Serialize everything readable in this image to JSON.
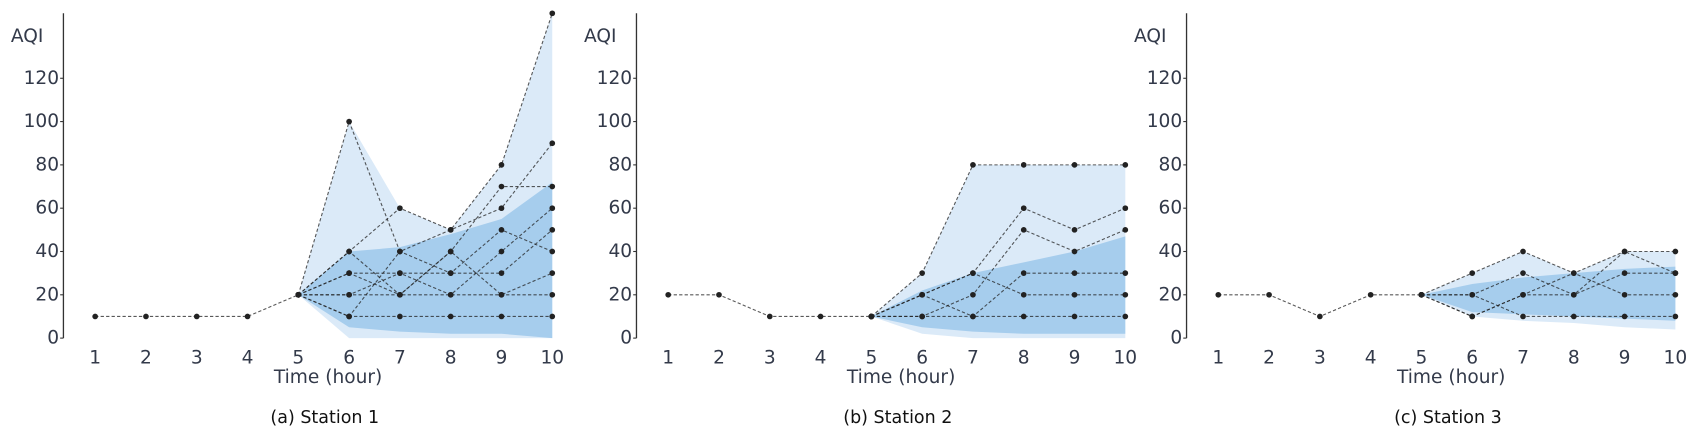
{
  "chart_data": [
    {
      "type": "line",
      "title": "(a) Station 1",
      "x_label": "Time (hour)",
      "y_label": "AQI",
      "x": [
        1,
        2,
        3,
        4,
        5,
        6,
        7,
        8,
        9,
        10
      ],
      "xlim": [
        0.375,
        10
      ],
      "xticks": [
        1,
        2,
        3,
        4,
        5,
        6,
        7,
        8,
        9,
        10
      ],
      "ylim": [
        0,
        150
      ],
      "yticks": [
        0,
        20,
        40,
        60,
        80,
        100,
        120
      ],
      "bands": [
        {
          "color": "#cfe3f6",
          "lower": [
            null,
            null,
            null,
            null,
            20,
            0,
            0,
            0,
            0,
            0
          ],
          "upper": [
            null,
            null,
            null,
            null,
            20,
            100,
            60,
            50,
            80,
            150
          ]
        },
        {
          "color": "#94c3ea",
          "lower": [
            null,
            null,
            null,
            null,
            20,
            5,
            3,
            2,
            2,
            0
          ],
          "upper": [
            null,
            null,
            null,
            null,
            20,
            40,
            42,
            48,
            55,
            72
          ]
        }
      ],
      "series": [
        {
          "color": "#222222",
          "values": [
            10,
            10,
            10,
            10,
            20,
            null,
            null,
            null,
            null,
            null
          ]
        },
        {
          "color": "#222222",
          "values": [
            null,
            null,
            null,
            null,
            20,
            100,
            40,
            50,
            80,
            150
          ]
        },
        {
          "color": "#222222",
          "values": [
            null,
            null,
            null,
            null,
            20,
            40,
            60,
            50,
            60,
            90
          ]
        },
        {
          "color": "#222222",
          "values": [
            null,
            null,
            null,
            null,
            20,
            30,
            20,
            40,
            70,
            70
          ]
        },
        {
          "color": "#222222",
          "values": [
            null,
            null,
            null,
            null,
            20,
            20,
            30,
            20,
            40,
            60
          ]
        },
        {
          "color": "#222222",
          "values": [
            null,
            null,
            null,
            null,
            20,
            10,
            10,
            10,
            10,
            10
          ]
        },
        {
          "color": "#222222",
          "values": [
            null,
            null,
            null,
            null,
            20,
            20,
            20,
            20,
            20,
            20
          ]
        },
        {
          "color": "#222222",
          "values": [
            null,
            null,
            null,
            null,
            20,
            10,
            40,
            30,
            50,
            40
          ]
        },
        {
          "color": "#222222",
          "values": [
            null,
            null,
            null,
            null,
            20,
            30,
            30,
            30,
            30,
            50
          ]
        },
        {
          "color": "#222222",
          "values": [
            null,
            null,
            null,
            null,
            20,
            40,
            20,
            40,
            20,
            30
          ]
        }
      ]
    },
    {
      "type": "line",
      "title": "(b) Station 2",
      "x_label": "Time (hour)",
      "y_label": "AQI",
      "x": [
        1,
        2,
        3,
        4,
        5,
        6,
        7,
        8,
        9,
        10
      ],
      "xlim": [
        0.375,
        10
      ],
      "xticks": [
        1,
        2,
        3,
        4,
        5,
        6,
        7,
        8,
        9,
        10
      ],
      "ylim": [
        0,
        150
      ],
      "yticks": [
        0,
        20,
        40,
        60,
        80,
        100,
        120
      ],
      "bands": [
        {
          "color": "#cfe3f6",
          "lower": [
            null,
            null,
            null,
            null,
            10,
            2,
            0,
            0,
            0,
            0
          ],
          "upper": [
            null,
            null,
            null,
            null,
            10,
            30,
            80,
            80,
            80,
            80
          ]
        },
        {
          "color": "#94c3ea",
          "lower": [
            null,
            null,
            null,
            null,
            10,
            5,
            3,
            2,
            2,
            2
          ],
          "upper": [
            null,
            null,
            null,
            null,
            10,
            22,
            30,
            35,
            40,
            47
          ]
        }
      ],
      "series": [
        {
          "color": "#222222",
          "values": [
            20,
            20,
            10,
            10,
            10,
            null,
            null,
            null,
            null,
            null
          ]
        },
        {
          "color": "#222222",
          "values": [
            null,
            null,
            null,
            null,
            10,
            30,
            80,
            80,
            80,
            80
          ]
        },
        {
          "color": "#222222",
          "values": [
            null,
            null,
            null,
            null,
            10,
            20,
            30,
            60,
            50,
            60
          ]
        },
        {
          "color": "#222222",
          "values": [
            null,
            null,
            null,
            null,
            10,
            10,
            20,
            50,
            40,
            50
          ]
        },
        {
          "color": "#222222",
          "values": [
            null,
            null,
            null,
            null,
            10,
            20,
            10,
            30,
            30,
            30
          ]
        },
        {
          "color": "#222222",
          "values": [
            null,
            null,
            null,
            null,
            10,
            10,
            10,
            10,
            10,
            10
          ]
        },
        {
          "color": "#222222",
          "values": [
            null,
            null,
            null,
            null,
            10,
            20,
            30,
            20,
            20,
            20
          ]
        }
      ]
    },
    {
      "type": "line",
      "title": "(c) Station 3",
      "x_label": "Time (hour)",
      "y_label": "AQI",
      "x": [
        1,
        2,
        3,
        4,
        5,
        6,
        7,
        8,
        9,
        10
      ],
      "xlim": [
        0.375,
        10
      ],
      "xticks": [
        1,
        2,
        3,
        4,
        5,
        6,
        7,
        8,
        9,
        10
      ],
      "ylim": [
        0,
        150
      ],
      "yticks": [
        0,
        20,
        40,
        60,
        80,
        100,
        120
      ],
      "bands": [
        {
          "color": "#cfe3f6",
          "lower": [
            null,
            null,
            null,
            null,
            20,
            10,
            8,
            7,
            5,
            4
          ],
          "upper": [
            null,
            null,
            null,
            null,
            20,
            30,
            40,
            30,
            40,
            40
          ]
        },
        {
          "color": "#94c3ea",
          "lower": [
            null,
            null,
            null,
            null,
            20,
            12,
            11,
            10,
            9,
            8
          ],
          "upper": [
            null,
            null,
            null,
            null,
            20,
            25,
            28,
            30,
            32,
            33
          ]
        }
      ],
      "series": [
        {
          "color": "#222222",
          "values": [
            20,
            20,
            10,
            20,
            20,
            null,
            null,
            null,
            null,
            null
          ]
        },
        {
          "color": "#222222",
          "values": [
            null,
            null,
            null,
            null,
            20,
            30,
            40,
            30,
            40,
            40
          ]
        },
        {
          "color": "#222222",
          "values": [
            null,
            null,
            null,
            null,
            20,
            20,
            30,
            20,
            30,
            30
          ]
        },
        {
          "color": "#222222",
          "values": [
            null,
            null,
            null,
            null,
            20,
            10,
            20,
            30,
            20,
            20
          ]
        },
        {
          "color": "#222222",
          "values": [
            null,
            null,
            null,
            null,
            20,
            20,
            10,
            10,
            10,
            10
          ]
        },
        {
          "color": "#222222",
          "values": [
            null,
            null,
            null,
            null,
            20,
            10,
            20,
            20,
            40,
            30
          ]
        }
      ]
    }
  ]
}
